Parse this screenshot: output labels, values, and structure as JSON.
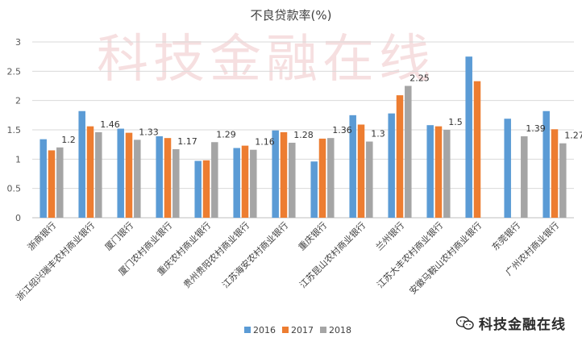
{
  "chart_data": {
    "type": "bar",
    "title": "不良贷款率(%)",
    "watermark": "科技金融在线",
    "ylim": [
      0,
      3
    ],
    "yticks": [
      "0",
      "0.5",
      "1",
      "1.5",
      "2",
      "2.5",
      "3"
    ],
    "grid": true,
    "legend_position": "bottom",
    "categories": [
      "浙商银行",
      "浙江绍兴瑞丰农村商业银行",
      "厦门银行",
      "厦门农村商业银行",
      "重庆农村商业银行",
      "贵州贵阳农村商业银行",
      "江苏海安农村商业银行",
      "重庆银行",
      "江苏昆山农村商业银行",
      "兰州银行",
      "江苏大丰农村商业银行",
      "安徽马鞍山农村商业银行",
      "东莞银行",
      "广州农村商业银行"
    ],
    "series": [
      {
        "name": "2016",
        "color": "#5b9bd5",
        "values": [
          1.34,
          1.82,
          1.52,
          1.39,
          0.97,
          1.19,
          1.49,
          0.96,
          1.75,
          1.78,
          1.58,
          2.75,
          1.69,
          1.82
        ]
      },
      {
        "name": "2017",
        "color": "#ed7d31",
        "values": [
          1.15,
          1.56,
          1.45,
          1.36,
          0.98,
          1.23,
          1.46,
          1.35,
          1.59,
          2.09,
          1.56,
          2.33,
          null,
          1.51
        ]
      },
      {
        "name": "2018",
        "color": "#a5a5a5",
        "values": [
          1.2,
          1.46,
          1.33,
          1.17,
          1.29,
          1.16,
          1.28,
          1.36,
          1.3,
          2.25,
          1.5,
          null,
          1.39,
          1.27
        ]
      }
    ],
    "data_labels": [
      "1.2",
      "1.46",
      "1.33",
      "1.17",
      "1.29",
      "1.16",
      "1.28",
      "1.36",
      "1.3",
      "2.25",
      "1.5",
      "",
      "1.39",
      "1.27"
    ]
  },
  "brand": {
    "name": "科技金融在线",
    "logo_icon": "wechat-bubble-icon"
  }
}
